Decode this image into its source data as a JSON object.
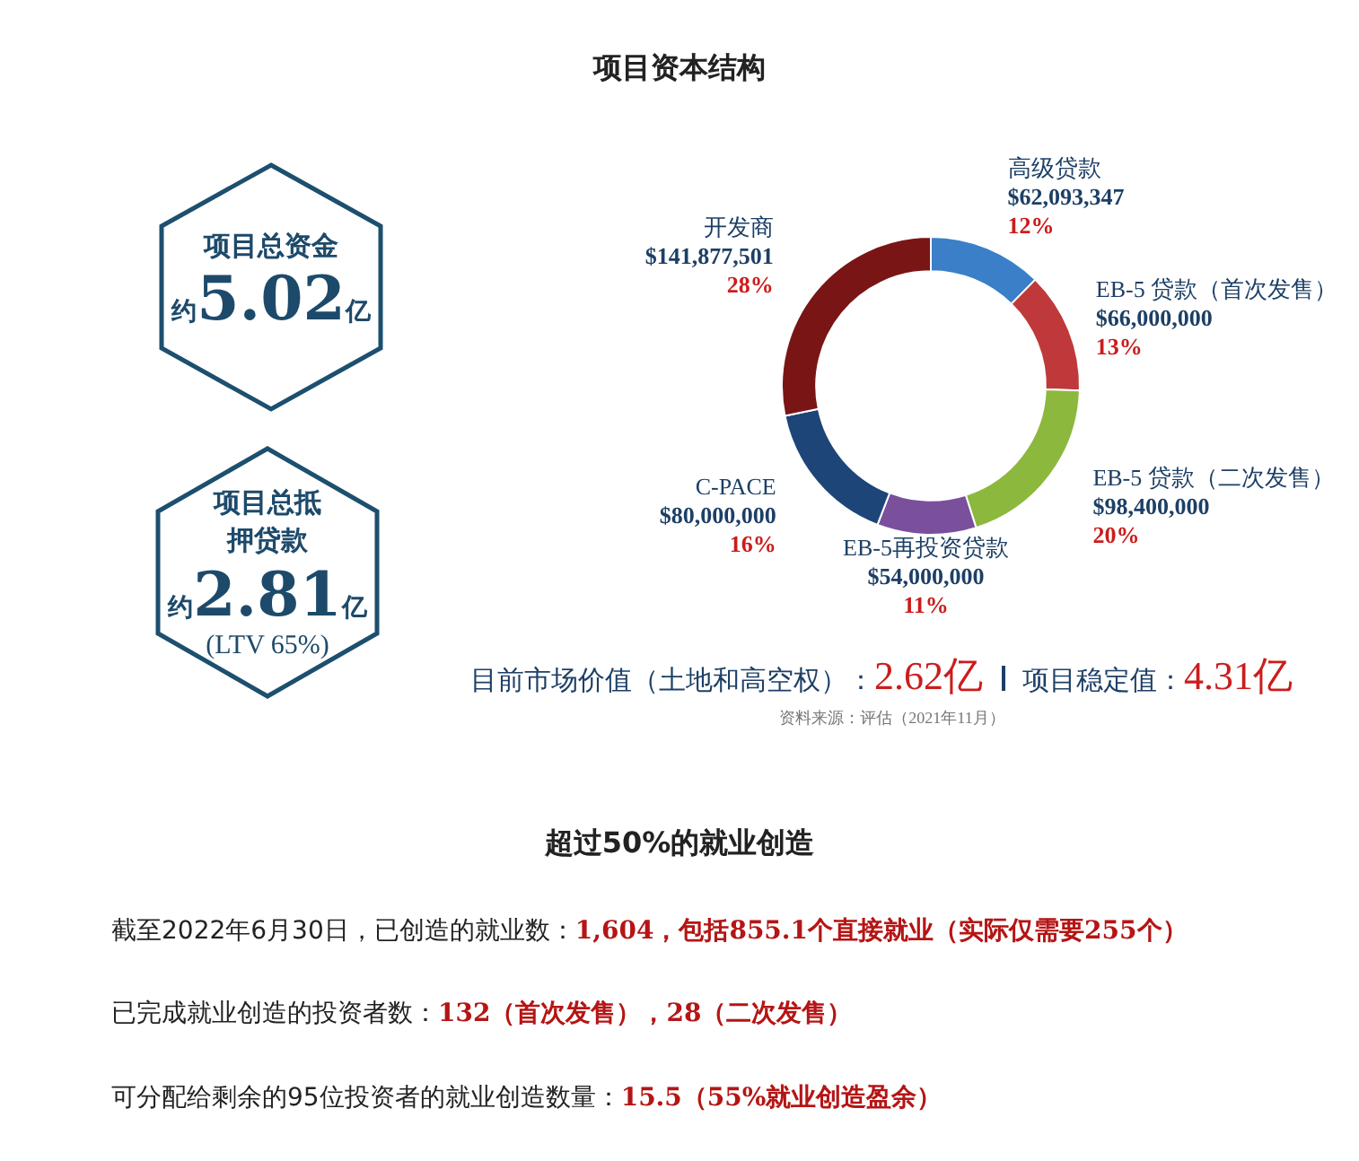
{
  "chart_data": {
    "type": "donut",
    "title": "项目资本结构",
    "categories": [
      "高级贷款",
      "EB-5 贷款（首次发售）",
      "EB-5 贷款（二次发售）",
      "EB-5再投资贷款",
      "C-PACE",
      "开发商"
    ],
    "values": [
      62093347,
      66000000,
      98400000,
      54000000,
      80000000,
      141877501
    ],
    "colors": [
      "#3a7fc8",
      "#c0393a",
      "#8cb83e",
      "#7a4f9c",
      "#1d4577",
      "#7a1515"
    ],
    "value_labels": [
      "$62,093,347",
      "$66,000,000",
      "$98,400,000",
      "$54,000,000",
      "$80,000,000",
      "$141,877,501"
    ],
    "legend": false,
    "annotations": [
      {
        "text": "12%",
        "x": "高级贷款"
      },
      {
        "text": "13%",
        "x": "EB-5 贷款（首次发售）"
      },
      {
        "text": "20%",
        "x": "EB-5 贷款（二次发售）"
      },
      {
        "text": "11%",
        "x": "EB-5再投资贷款"
      },
      {
        "text": "16%",
        "x": "C-PACE"
      },
      {
        "text": "28%",
        "x": "开发商"
      },
      "项目总资金",
      "约5.02亿",
      "项目总抵押贷款",
      "约2.81亿",
      "(LTV 65%)",
      "目前市场价值（土地和高空权）：2.62亿",
      "项目稳定值：4.31亿",
      "资料来源：评估（2021年11月）",
      "超过50%的就业创造",
      "截至2022年6月30日，已创造的就业数：1,604，包括855.1个直接就业（实际仅需要255个）",
      "已完成就业创造的投资者数：132（首次发售），28（二次发售）",
      "可分配给剩余的95位投资者的就业创造数量：15.5（55%就业创造盈余）"
    ]
  }
}
